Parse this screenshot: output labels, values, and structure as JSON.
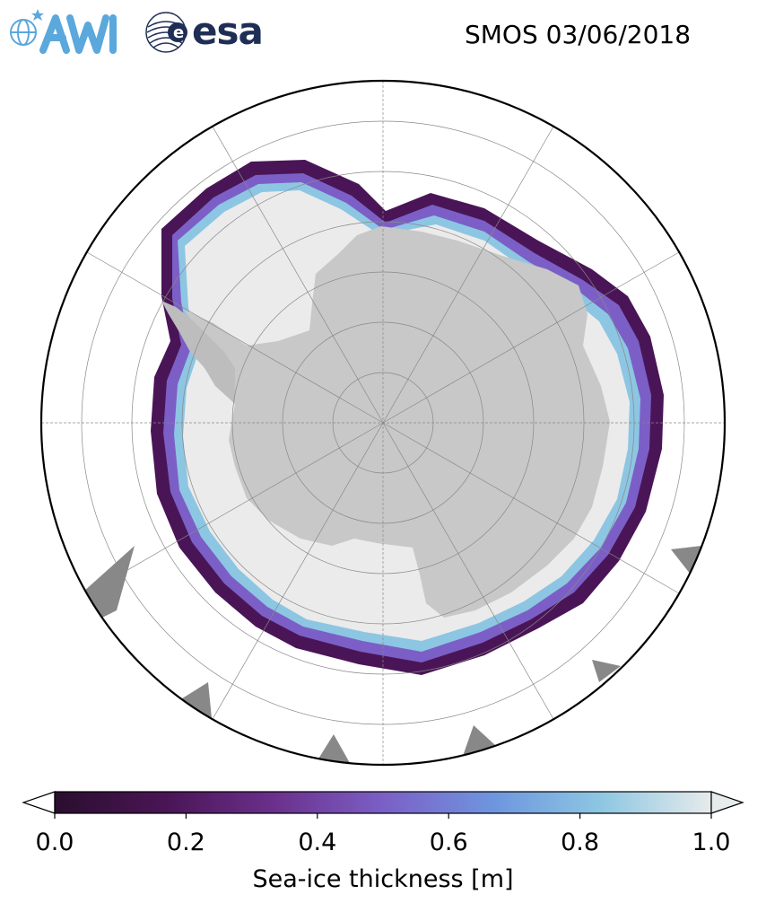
{
  "header": {
    "logo_awi": "AWI",
    "logo_esa": "esa",
    "title": "SMOS 03/06/2018"
  },
  "map": {
    "projection": "south-polar-stereographic",
    "land_color": "#c8c8c8",
    "thick_ice_color": "#ebebeb",
    "grid_color": "#888888"
  },
  "colorbar": {
    "colormap": "twilight-like (dark purple to light grey)",
    "colors": [
      "#2a0e2e",
      "#4a1556",
      "#6a2f8a",
      "#7b5fc6",
      "#6e96df",
      "#8dc6e2",
      "#e6ebeb"
    ],
    "ticks": [
      "0.0",
      "0.2",
      "0.4",
      "0.6",
      "0.8",
      "1.0"
    ],
    "tick_values": [
      0.0,
      0.2,
      0.4,
      0.6,
      0.8,
      1.0
    ],
    "label": "Sea-ice thickness [m]",
    "extend": "both"
  }
}
